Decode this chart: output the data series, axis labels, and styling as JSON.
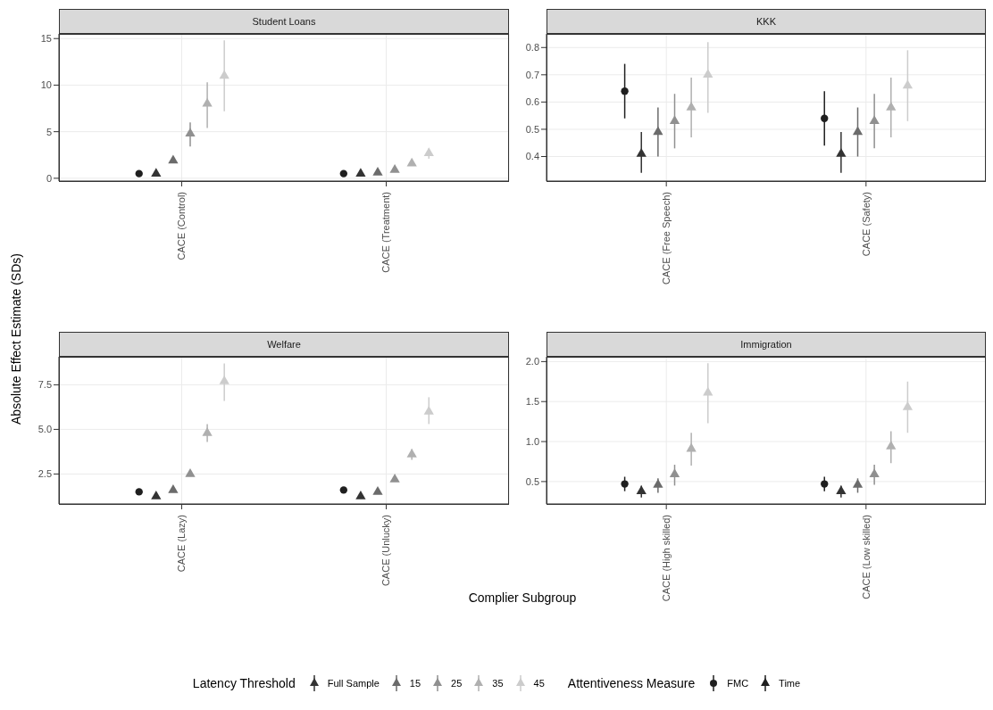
{
  "chart_data": [
    {
      "type": "scatter",
      "title": "Student Loans",
      "ylabel": "Absolute Effect Estimate (SDs)",
      "categories": [
        "CACE (Control)",
        "CACE (Treatment)"
      ],
      "ylim": [
        -0.3,
        15.5
      ],
      "yticks": [
        0,
        5,
        10,
        15
      ],
      "grid": true,
      "legend": "bottom",
      "series": [
        {
          "name": "FMC",
          "color": "#1f1f1f",
          "marker": "circle",
          "values": [
            0.5,
            0.5
          ],
          "errors": [
            null,
            null
          ]
        },
        {
          "name": "Full Sample",
          "color": "#333333",
          "marker": "triangle",
          "values": [
            0.5,
            0.5
          ],
          "errors": [
            null,
            null
          ]
        },
        {
          "name": "15",
          "color": "#6b6b6b",
          "marker": "triangle",
          "values": [
            1.9,
            0.6
          ],
          "errors": [
            null,
            null
          ]
        },
        {
          "name": "25",
          "color": "#909090",
          "marker": "triangle",
          "values": [
            4.8,
            0.9
          ],
          "errors": [
            [
              3.4,
              6.0
            ],
            null
          ]
        },
        {
          "name": "35",
          "color": "#b0b0b0",
          "marker": "triangle",
          "values": [
            8.0,
            1.6
          ],
          "errors": [
            [
              5.4,
              10.3
            ],
            null
          ]
        },
        {
          "name": "45",
          "color": "#cccccc",
          "marker": "triangle",
          "values": [
            11.0,
            2.7
          ],
          "errors": [
            [
              7.2,
              14.8
            ],
            [
              2.1,
              3.2
            ]
          ]
        }
      ]
    },
    {
      "type": "scatter",
      "title": "KKK",
      "categories": [
        "CACE (Free Speech)",
        "CACE (Safety)"
      ],
      "ylim": [
        0.31,
        0.85
      ],
      "yticks": [
        0.4,
        0.5,
        0.6,
        0.7,
        0.8
      ],
      "grid": true,
      "legend": "bottom",
      "series": [
        {
          "name": "FMC",
          "color": "#1f1f1f",
          "marker": "circle",
          "values": [
            0.64,
            0.54
          ],
          "errors": [
            [
              0.54,
              0.74
            ],
            [
              0.44,
              0.64
            ]
          ]
        },
        {
          "name": "Full Sample",
          "color": "#333333",
          "marker": "triangle",
          "values": [
            0.41,
            0.41
          ],
          "errors": [
            [
              0.34,
              0.49
            ],
            [
              0.34,
              0.49
            ]
          ]
        },
        {
          "name": "15",
          "color": "#6b6b6b",
          "marker": "triangle",
          "values": [
            0.49,
            0.49
          ],
          "errors": [
            [
              0.4,
              0.58
            ],
            [
              0.4,
              0.58
            ]
          ]
        },
        {
          "name": "25",
          "color": "#909090",
          "marker": "triangle",
          "values": [
            0.53,
            0.53
          ],
          "errors": [
            [
              0.43,
              0.63
            ],
            [
              0.43,
              0.63
            ]
          ]
        },
        {
          "name": "35",
          "color": "#b0b0b0",
          "marker": "triangle",
          "values": [
            0.58,
            0.58
          ],
          "errors": [
            [
              0.47,
              0.69
            ],
            [
              0.47,
              0.69
            ]
          ]
        },
        {
          "name": "45",
          "color": "#cccccc",
          "marker": "triangle",
          "values": [
            0.7,
            0.66
          ],
          "errors": [
            [
              0.56,
              0.82
            ],
            [
              0.53,
              0.79
            ]
          ]
        }
      ]
    },
    {
      "type": "scatter",
      "title": "Welfare",
      "xlabel": "Complier Subgroup",
      "categories": [
        "CACE (Lazy)",
        "CACE (Unlucky)"
      ],
      "ylim": [
        0.82,
        9.07
      ],
      "yticks": [
        2.5,
        {
          "value": 5,
          "label": "5.0"
        },
        7.5
      ],
      "grid": true,
      "legend": "bottom",
      "series": [
        {
          "name": "FMC",
          "color": "#1f1f1f",
          "marker": "circle",
          "values": [
            1.5,
            1.6
          ],
          "errors": [
            null,
            null
          ]
        },
        {
          "name": "Full Sample",
          "color": "#333333",
          "marker": "triangle",
          "values": [
            1.25,
            1.25
          ],
          "errors": [
            null,
            null
          ]
        },
        {
          "name": "15",
          "color": "#6b6b6b",
          "marker": "triangle",
          "values": [
            1.6,
            1.5
          ],
          "errors": [
            null,
            null
          ]
        },
        {
          "name": "25",
          "color": "#909090",
          "marker": "triangle",
          "values": [
            2.5,
            2.2
          ],
          "errors": [
            null,
            null
          ]
        },
        {
          "name": "35",
          "color": "#b0b0b0",
          "marker": "triangle",
          "values": [
            4.8,
            3.6
          ],
          "errors": [
            [
              4.3,
              5.3
            ],
            [
              3.3,
              3.9
            ]
          ]
        },
        {
          "name": "45",
          "color": "#cccccc",
          "marker": "triangle",
          "values": [
            7.7,
            6.0
          ],
          "errors": [
            [
              6.6,
              8.7
            ],
            [
              5.3,
              6.8
            ]
          ]
        }
      ]
    },
    {
      "type": "scatter",
      "title": "Immigration",
      "categories": [
        "CACE (High skilled)",
        "CACE (Low skilled)"
      ],
      "ylim": [
        0.22,
        2.06
      ],
      "yticks": [
        0.5,
        {
          "value": 1,
          "label": "1.0"
        },
        1.5,
        {
          "value": 2,
          "label": "2.0"
        }
      ],
      "grid": true,
      "legend": "bottom",
      "legend_title": "Latency Threshold",
      "annotations": [
        "Attentiveness Measure",
        "Time"
      ],
      "series": [
        {
          "name": "FMC",
          "color": "#1f1f1f",
          "marker": "circle",
          "values": [
            0.47,
            0.47
          ],
          "errors": [
            [
              0.38,
              0.56
            ],
            [
              0.38,
              0.56
            ]
          ]
        },
        {
          "name": "Full Sample",
          "color": "#333333",
          "marker": "triangle",
          "values": [
            0.38,
            0.38
          ],
          "errors": [
            [
              0.3,
              0.45
            ],
            [
              0.3,
              0.45
            ]
          ]
        },
        {
          "name": "15",
          "color": "#6b6b6b",
          "marker": "triangle",
          "values": [
            0.46,
            0.46
          ],
          "errors": [
            [
              0.36,
              0.54
            ],
            [
              0.36,
              0.54
            ]
          ]
        },
        {
          "name": "25",
          "color": "#909090",
          "marker": "triangle",
          "values": [
            0.59,
            0.59
          ],
          "errors": [
            [
              0.45,
              0.71
            ],
            [
              0.46,
              0.71
            ]
          ]
        },
        {
          "name": "35",
          "color": "#b0b0b0",
          "marker": "triangle",
          "values": [
            0.91,
            0.94
          ],
          "errors": [
            [
              0.7,
              1.11
            ],
            [
              0.73,
              1.13
            ]
          ]
        },
        {
          "name": "45",
          "color": "#cccccc",
          "marker": "triangle",
          "values": [
            1.61,
            1.43
          ],
          "errors": [
            [
              1.23,
              1.98
            ],
            [
              1.11,
              1.75
            ]
          ]
        }
      ]
    }
  ]
}
